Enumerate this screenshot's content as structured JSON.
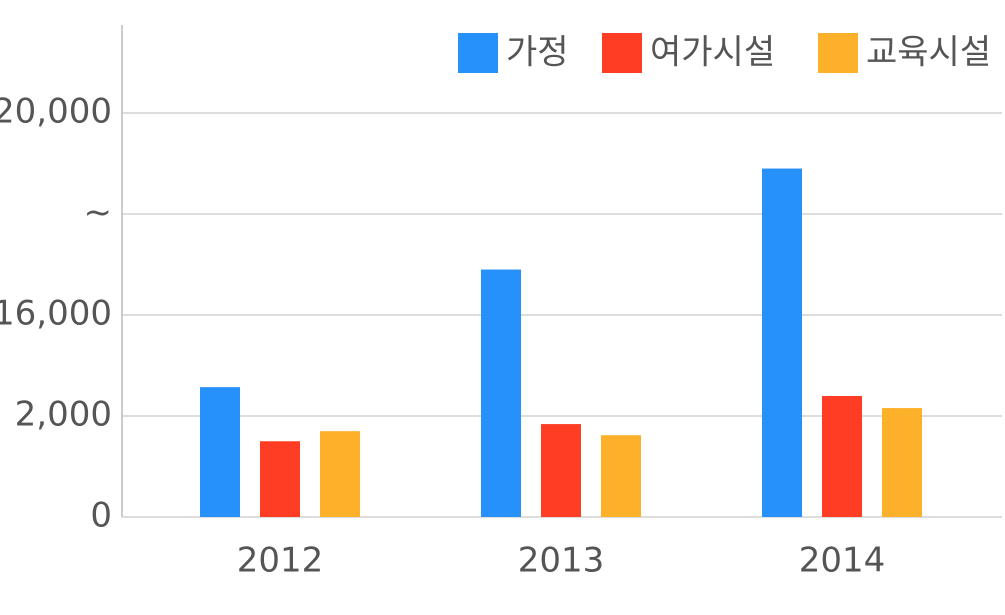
{
  "chart_data": {
    "type": "bar",
    "categories": [
      "2012",
      "2013",
      "2014"
    ],
    "series": [
      {
        "name": "가정",
        "color": "#2791fb",
        "values": [
          6000,
          16900,
          18900
        ]
      },
      {
        "name": "여가시설",
        "color": "#ff3d25",
        "values": [
          1500,
          1840,
          4770
        ]
      },
      {
        "name": "교육시설",
        "color": "#fdb12a",
        "values": [
          1700,
          1620,
          3100
        ]
      }
    ],
    "ylim": [
      0,
      21750
    ],
    "yticks": [
      0,
      {
        "value": 2000,
        "label": "2,000"
      },
      {
        "value": 16000,
        "label": "16,000"
      },
      {
        "value": 18000,
        "label": "~"
      },
      {
        "value": 20000,
        "label": "20,000"
      }
    ],
    "grid": true,
    "legend": "top-right"
  }
}
